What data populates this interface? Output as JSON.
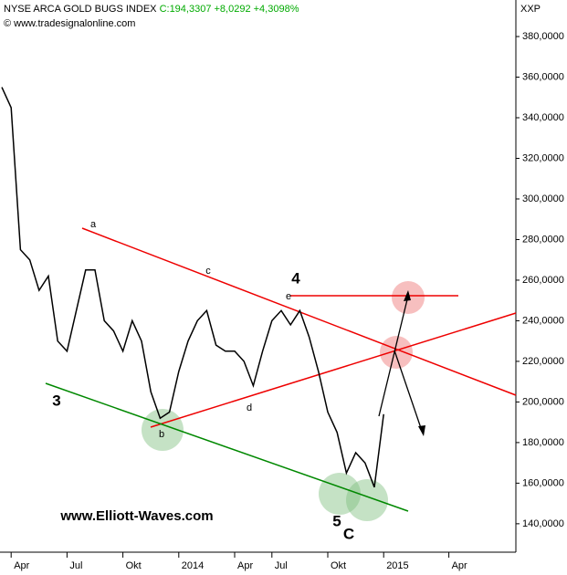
{
  "chart_data": {
    "type": "line",
    "title": "NYSE ARCA GOLD BUGS INDEX",
    "quote": "C:194,3307 +8,0292 +4,3098%",
    "copyright": "© www.tradesignalonline.com",
    "currency": "XXP",
    "watermark": "www.Elliott-Waves.com",
    "annotations": [
      "a",
      "b",
      "c",
      "d",
      "e",
      "3",
      "4",
      "5",
      "C"
    ],
    "categories": [
      null,
      "Apr",
      null,
      null,
      null,
      null,
      null,
      "Jul",
      null,
      null,
      null,
      null,
      null,
      "Okt",
      null,
      null,
      null,
      null,
      null,
      "2014",
      null,
      null,
      null,
      null,
      null,
      "Apr",
      null,
      null,
      null,
      "Jul",
      null,
      null,
      null,
      null,
      null,
      "Okt",
      null,
      null,
      null,
      null,
      null,
      "2015",
      null,
      null,
      null,
      null,
      null,
      null,
      "Apr",
      null,
      null,
      null,
      null,
      null,
      null,
      null
    ],
    "values": [
      355,
      345,
      275,
      270,
      255,
      262,
      230,
      225,
      245,
      265,
      265,
      240,
      235,
      225,
      240,
      230,
      205,
      192,
      195,
      215,
      230,
      240,
      245,
      228,
      225,
      225,
      220,
      208,
      225,
      240,
      245,
      238,
      245,
      232,
      215,
      195,
      185,
      165,
      175,
      170,
      158,
      194,
      null,
      null,
      null,
      null,
      null,
      null,
      null,
      null,
      null,
      null,
      null,
      null,
      null,
      null
    ],
    "color": "#000000",
    "ylim": [
      126,
      398
    ],
    "yticks": [
      {
        "value": 140,
        "label": "140,0000"
      },
      {
        "value": 160,
        "label": "160,0000"
      },
      {
        "value": 180,
        "label": "180,0000"
      },
      {
        "value": 200,
        "label": "200,0000"
      },
      {
        "value": 220,
        "label": "220,0000"
      },
      {
        "value": 240,
        "label": "240,0000"
      },
      {
        "value": 260,
        "label": "260,0000"
      },
      {
        "value": 280,
        "label": "280,0000"
      },
      {
        "value": 300,
        "label": "300,0000"
      },
      {
        "value": 320,
        "label": "320,0000"
      },
      {
        "value": 340,
        "label": "340,0000"
      },
      {
        "value": 360,
        "label": "360,0000"
      },
      {
        "value": 380,
        "label": "380,0000"
      }
    ],
    "grid": false
  }
}
